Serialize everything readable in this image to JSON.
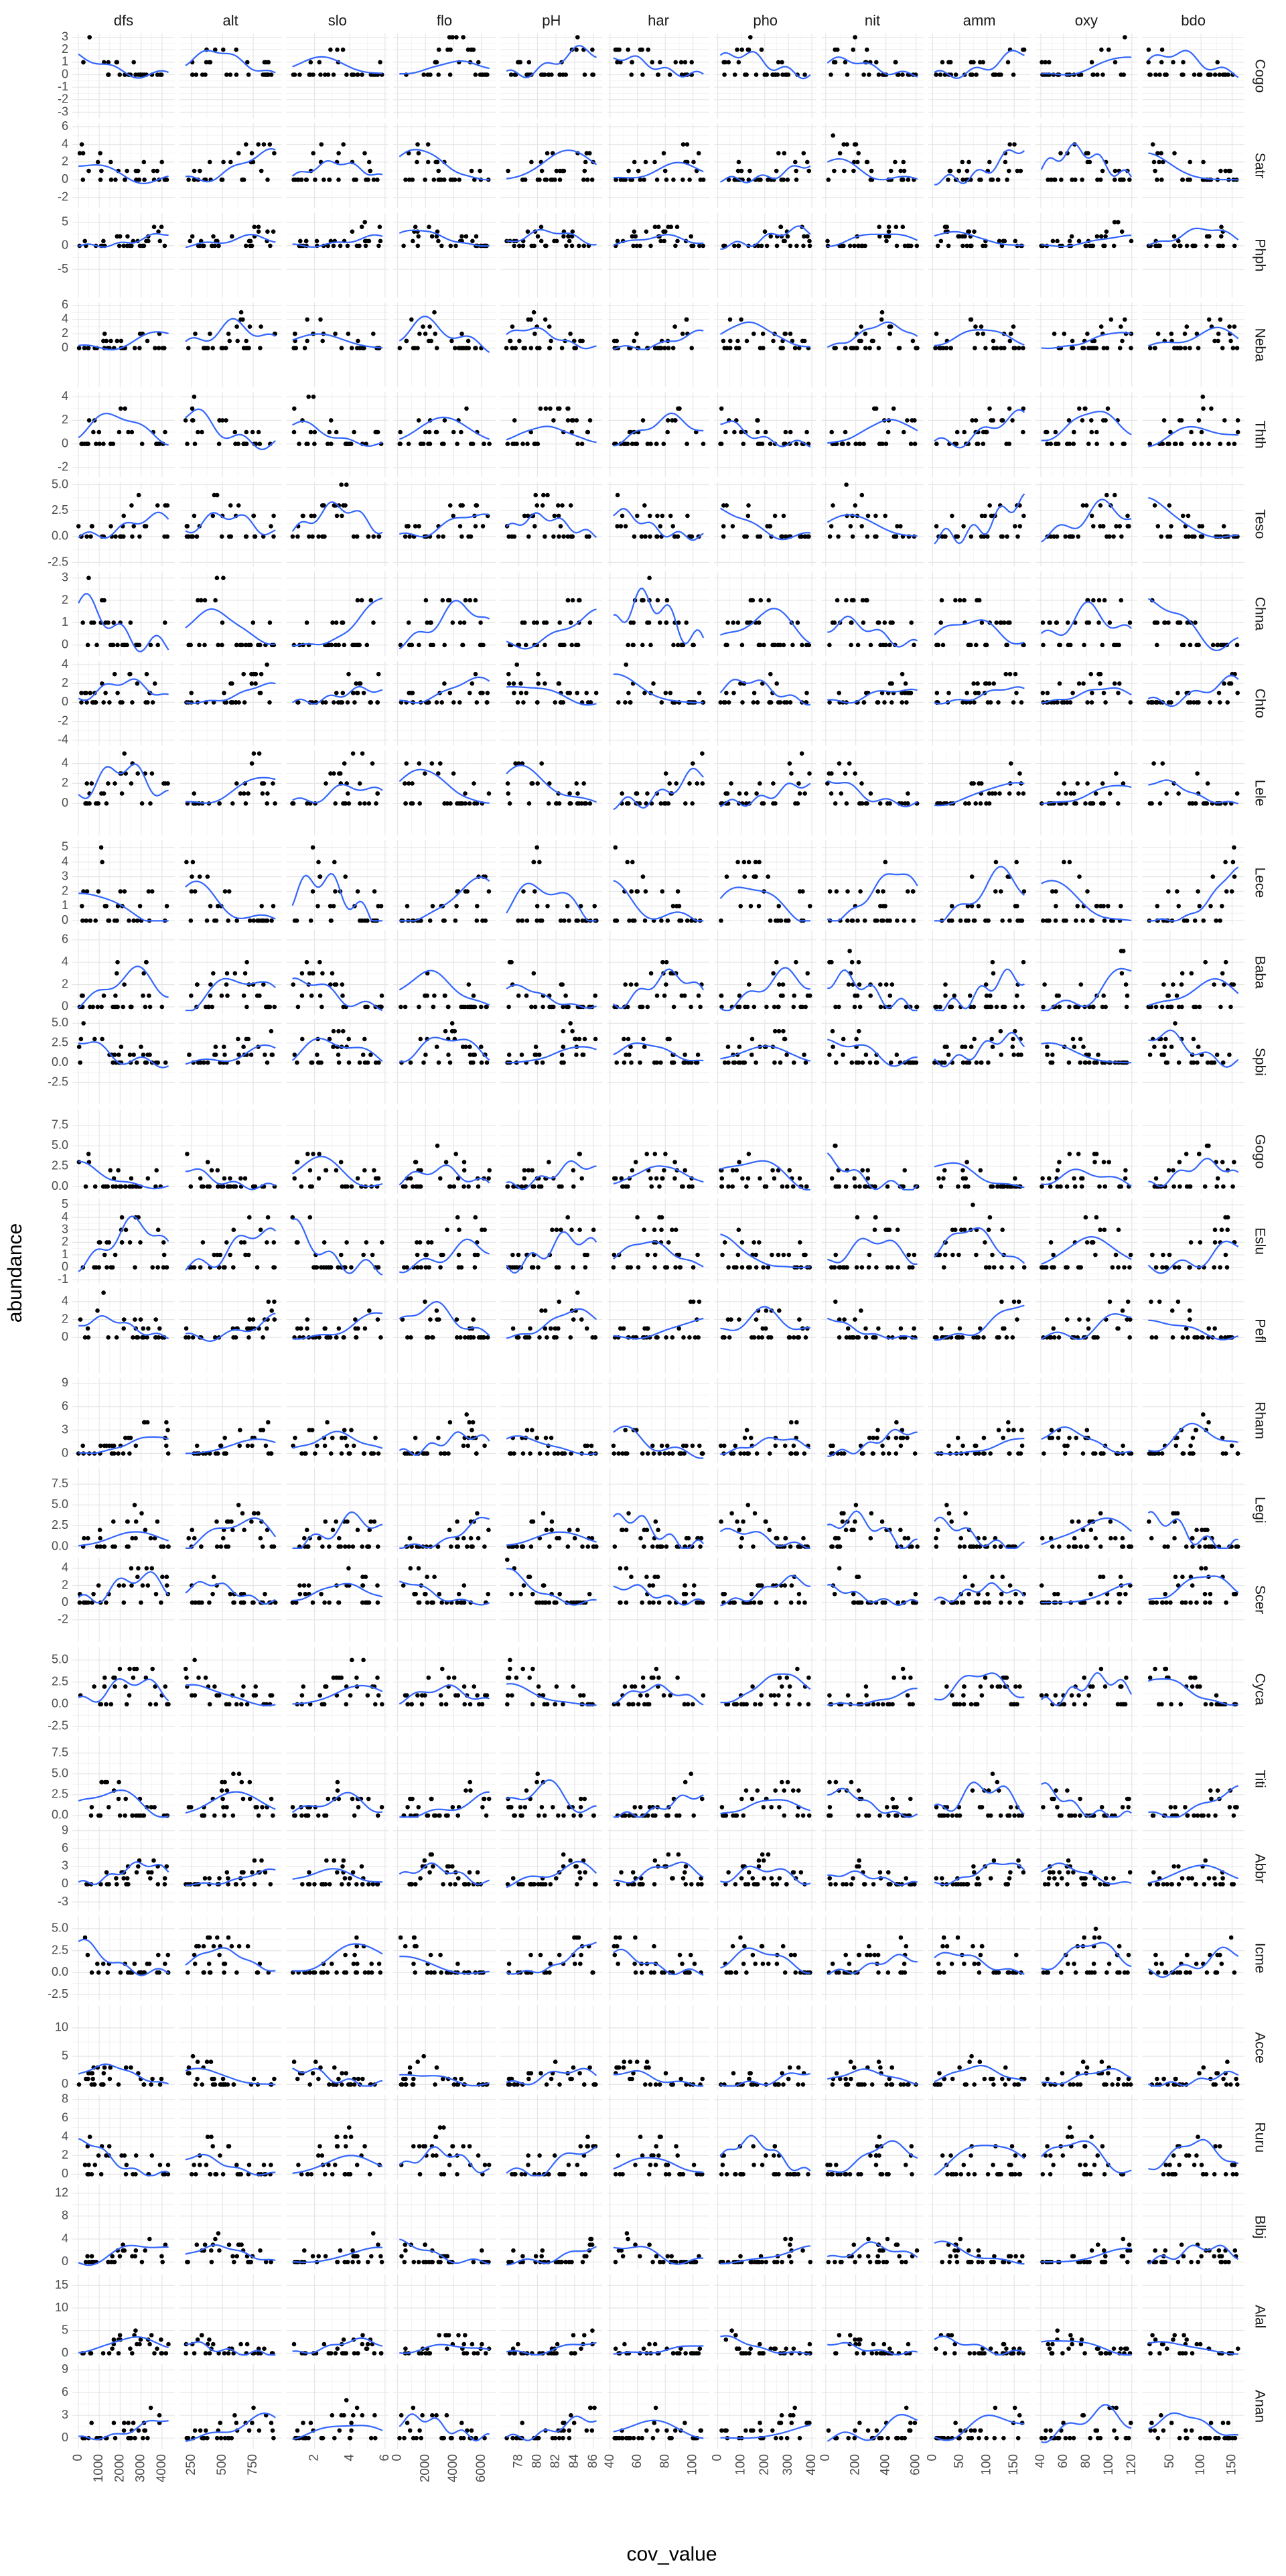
{
  "chart_data": {
    "type": "scatter",
    "title": "",
    "xlabel": "cov_value",
    "ylabel": "abundance",
    "grid": true,
    "smooth_color": "#3366FF",
    "point_color": "#000000",
    "columns": [
      {
        "name": "dfs",
        "xlim": [
          -280,
          4600
        ],
        "ticks": [
          0,
          1000,
          2000,
          3000,
          4000
        ],
        "tick_labels": [
          "0",
          "1000",
          "2000",
          "3000",
          "4000"
        ]
      },
      {
        "name": "alt",
        "xlim": [
          150,
          980
        ],
        "ticks": [
          250,
          500,
          750
        ],
        "tick_labels": [
          "250",
          "500",
          "750"
        ]
      },
      {
        "name": "slo",
        "xlim": [
          0.4,
          6.2
        ],
        "ticks": [
          2,
          4,
          6
        ],
        "tick_labels": [
          "2",
          "4",
          "6"
        ]
      },
      {
        "name": "flo",
        "xlim": [
          -300,
          7000
        ],
        "ticks": [
          0,
          2000,
          4000,
          6000
        ],
        "tick_labels": [
          "0",
          "2000",
          "4000",
          "6000"
        ]
      },
      {
        "name": "pH",
        "xlim": [
          76,
          87
        ],
        "ticks": [
          78,
          80,
          82,
          84,
          86
        ],
        "tick_labels": [
          "78",
          "80",
          "82",
          "84",
          "86"
        ]
      },
      {
        "name": "har",
        "xlim": [
          38,
          112
        ],
        "ticks": [
          40,
          60,
          80,
          100
        ],
        "tick_labels": [
          "40",
          "60",
          "80",
          "100"
        ]
      },
      {
        "name": "pho",
        "xlim": [
          -15,
          420
        ],
        "ticks": [
          0,
          100,
          200,
          300,
          400
        ],
        "tick_labels": [
          "0",
          "100",
          "200",
          "300",
          "400"
        ]
      },
      {
        "name": "nit",
        "xlim": [
          -30,
          650
        ],
        "ticks": [
          0,
          200,
          400,
          600
        ],
        "tick_labels": [
          "0",
          "200",
          "400",
          "600"
        ]
      },
      {
        "name": "amm",
        "xlim": [
          -8,
          180
        ],
        "ticks": [
          0,
          50,
          100,
          150
        ],
        "tick_labels": [
          "0",
          "50",
          "100",
          "150"
        ]
      },
      {
        "name": "oxy",
        "xlim": [
          35,
          125
        ],
        "ticks": [
          40,
          60,
          80,
          100,
          120
        ],
        "tick_labels": [
          "40",
          "60",
          "80",
          "100",
          "120"
        ]
      },
      {
        "name": "bdo",
        "xlim": [
          5,
          170
        ],
        "ticks": [
          50,
          100,
          150
        ],
        "tick_labels": [
          "50",
          "100",
          "150"
        ]
      }
    ],
    "rows": [
      {
        "name": "Cogo",
        "ylim": [
          -3.5,
          3.3
        ],
        "ticks": [
          -3,
          -2,
          -1,
          0,
          1,
          2,
          3
        ],
        "tick_labels": [
          "-3",
          "-2",
          "-1",
          "0",
          "1",
          "2",
          "3"
        ],
        "max": 3
      },
      {
        "name": "Satr",
        "ylim": [
          -3.2,
          6.4
        ],
        "ticks": [
          -2,
          0,
          2,
          4,
          6
        ],
        "tick_labels": [
          "-2",
          "0",
          "2",
          "4",
          "6"
        ],
        "max": 5
      },
      {
        "name": "Phph",
        "ylim": [
          -11,
          7
        ],
        "ticks": [
          -5,
          0,
          5
        ],
        "tick_labels": [
          "-5",
          "0",
          "5"
        ],
        "max": 5
      },
      {
        "name": "Neba",
        "ylim": [
          -5.5,
          6.4
        ],
        "ticks": [
          0,
          2,
          4,
          6
        ],
        "tick_labels": [
          "0",
          "2",
          "4",
          "6"
        ],
        "max": 5
      },
      {
        "name": "Thth",
        "ylim": [
          -2.8,
          4.4
        ],
        "ticks": [
          -2,
          0,
          2,
          4
        ],
        "tick_labels": [
          "-2",
          "0",
          "2",
          "4"
        ],
        "max": 4
      },
      {
        "name": "Teso",
        "ylim": [
          -2.9,
          5.3
        ],
        "ticks": [
          -2.5,
          0.0,
          2.5,
          5.0
        ],
        "tick_labels": [
          "-2.5",
          "0.0",
          "2.5",
          "5.0"
        ],
        "max": 5
      },
      {
        "name": "Chna",
        "ylim": [
          -0.5,
          3.3
        ],
        "ticks": [
          0,
          1,
          2,
          3
        ],
        "tick_labels": [
          "0",
          "1",
          "2",
          "3"
        ],
        "max": 3
      },
      {
        "name": "Chto",
        "ylim": [
          -4.6,
          4.4
        ],
        "ticks": [
          -4,
          -2,
          0,
          2,
          4
        ],
        "tick_labels": [
          "-4",
          "-2",
          "0",
          "2",
          "4"
        ],
        "max": 4
      },
      {
        "name": "Lele",
        "ylim": [
          -3.2,
          5.3
        ],
        "ticks": [
          0,
          2,
          4
        ],
        "tick_labels": [
          "0",
          "2",
          "4"
        ],
        "max": 5
      },
      {
        "name": "Lece",
        "ylim": [
          -0.3,
          5.5
        ],
        "ticks": [
          0,
          1,
          2,
          3,
          4,
          5
        ],
        "tick_labels": [
          "0",
          "1",
          "2",
          "3",
          "4",
          "5"
        ],
        "max": 5
      },
      {
        "name": "Baba",
        "ylim": [
          -0.7,
          6.9
        ],
        "ticks": [
          0,
          2,
          4,
          6
        ],
        "tick_labels": [
          "0",
          "2",
          "4",
          "6"
        ],
        "max": 5
      },
      {
        "name": "Spbi",
        "ylim": [
          -5.3,
          5.5
        ],
        "ticks": [
          -2.5,
          0.0,
          2.5,
          5.0
        ],
        "tick_labels": [
          "-2.5",
          "0.0",
          "2.5",
          "5.0"
        ],
        "max": 5
      },
      {
        "name": "Gogo",
        "ylim": [
          -0.9,
          9.5
        ],
        "ticks": [
          0.0,
          2.5,
          5.0,
          7.5
        ],
        "tick_labels": [
          "0.0",
          "2.5",
          "5.0",
          "7.5"
        ],
        "max": 5
      },
      {
        "name": "Eslu",
        "ylim": [
          -1.3,
          5.5
        ],
        "ticks": [
          -1,
          0,
          1,
          2,
          3,
          4,
          5
        ],
        "tick_labels": [
          "-1",
          "0",
          "1",
          "2",
          "3",
          "4",
          "5"
        ],
        "max": 5
      },
      {
        "name": "Pefl",
        "ylim": [
          -4.0,
          5.5
        ],
        "ticks": [
          0,
          2,
          4
        ],
        "tick_labels": [
          "0",
          "2",
          "4"
        ],
        "max": 5
      },
      {
        "name": "Rham",
        "ylim": [
          -1.2,
          9.7
        ],
        "ticks": [
          0,
          3,
          6,
          9
        ],
        "tick_labels": [
          "0",
          "3",
          "6",
          "9"
        ],
        "max": 5
      },
      {
        "name": "Legi",
        "ylim": [
          -0.7,
          9.5
        ],
        "ticks": [
          0.0,
          2.5,
          5.0,
          7.5
        ],
        "tick_labels": [
          "0.0",
          "2.5",
          "5.0",
          "7.5"
        ],
        "max": 5
      },
      {
        "name": "Scer",
        "ylim": [
          -4.6,
          5.3
        ],
        "ticks": [
          -2,
          0,
          2,
          4
        ],
        "tick_labels": [
          "-2",
          "0",
          "2",
          "4"
        ],
        "max": 5
      },
      {
        "name": "Cyca",
        "ylim": [
          -3.1,
          6.5
        ],
        "ticks": [
          -2.5,
          0.0,
          2.5,
          5.0
        ],
        "tick_labels": [
          "-2.5",
          "0.0",
          "2.5",
          "5.0"
        ],
        "max": 5
      },
      {
        "name": "Titi",
        "ylim": [
          -0.7,
          9.5
        ],
        "ticks": [
          0.0,
          2.5,
          5.0,
          7.5
        ],
        "tick_labels": [
          "0.0",
          "2.5",
          "5.0",
          "7.5"
        ],
        "max": 5
      },
      {
        "name": "Abbr",
        "ylim": [
          -4.5,
          9.8
        ],
        "ticks": [
          -3,
          0,
          3,
          6,
          9
        ],
        "tick_labels": [
          "-3",
          "0",
          "3",
          "6",
          "9"
        ],
        "max": 5
      },
      {
        "name": "Icme",
        "ylim": [
          -3.2,
          6.5
        ],
        "ticks": [
          -2.5,
          0.0,
          2.5,
          5.0
        ],
        "tick_labels": [
          "-2.5",
          "0.0",
          "2.5",
          "5.0"
        ],
        "max": 5
      },
      {
        "name": "Acce",
        "ylim": [
          -1.0,
          14.0
        ],
        "ticks": [
          0,
          5,
          10
        ],
        "tick_labels": [
          "0",
          "5",
          "10"
        ],
        "max": 5
      },
      {
        "name": "Ruru",
        "ylim": [
          -0.6,
          8.5
        ],
        "ticks": [
          0,
          2,
          4,
          6,
          8
        ],
        "tick_labels": [
          "0",
          "2",
          "4",
          "6",
          "8"
        ],
        "max": 5
      },
      {
        "name": "Blbj",
        "ylim": [
          -1.3,
          13.5
        ],
        "ticks": [
          0,
          4,
          8,
          12
        ],
        "tick_labels": [
          "0",
          "4",
          "8",
          "12"
        ],
        "max": 5
      },
      {
        "name": "Alal",
        "ylim": [
          -1.3,
          17.5
        ],
        "ticks": [
          0,
          5,
          10,
          15
        ],
        "tick_labels": [
          "0",
          "5",
          "10",
          "15"
        ],
        "max": 5
      },
      {
        "name": "Anan",
        "ylim": [
          -1.4,
          9.8
        ],
        "ticks": [
          0,
          3,
          6,
          9
        ],
        "tick_labels": [
          "0",
          "3",
          "6",
          "9"
        ],
        "max": 5
      }
    ]
  }
}
